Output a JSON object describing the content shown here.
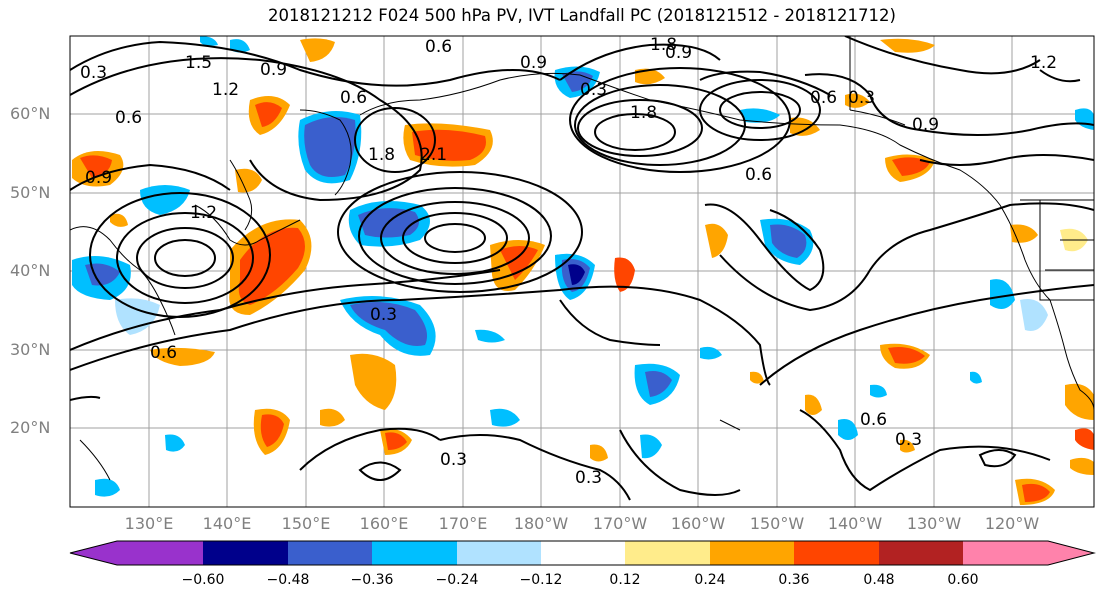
{
  "title": "2018121212 F024 500 hPa PV, IVT Landfall PC (2018121512 - 2018121712)",
  "axes": {
    "lat_labels": [
      "60°N",
      "50°N",
      "40°N",
      "30°N",
      "20°N"
    ],
    "lon_labels": [
      "130°E",
      "140°E",
      "150°E",
      "160°E",
      "170°E",
      "180°W",
      "170°W",
      "160°W",
      "150°W",
      "140°W",
      "130°W",
      "120°W"
    ]
  },
  "colorbar": {
    "ticks": [
      "−0.60",
      "−0.48",
      "−0.36",
      "−0.24",
      "−0.12",
      "0.12",
      "0.24",
      "0.36",
      "0.48",
      "0.60"
    ],
    "colors": [
      "#9932cc",
      "#00008b",
      "#3a5fcd",
      "#00bfff",
      "#b0e2ff",
      "#ffffff",
      "#ffec8b",
      "#ffa500",
      "#ff4500",
      "#b22222",
      "#ff82ab"
    ]
  },
  "contour_labels": [
    "0.3",
    "0.6",
    "0.9",
    "1.2",
    "1.5",
    "1.8",
    "2.1",
    "0.3",
    "0.6",
    "0.9",
    "1.2",
    "1.8",
    "0.6",
    "0.3",
    "0.6",
    "0.3",
    "0.6",
    "0.9",
    "0.3",
    "0.3",
    "0.6",
    "1.2",
    "0.9",
    "1.8",
    "0.9",
    "0.6",
    "0.3"
  ]
}
